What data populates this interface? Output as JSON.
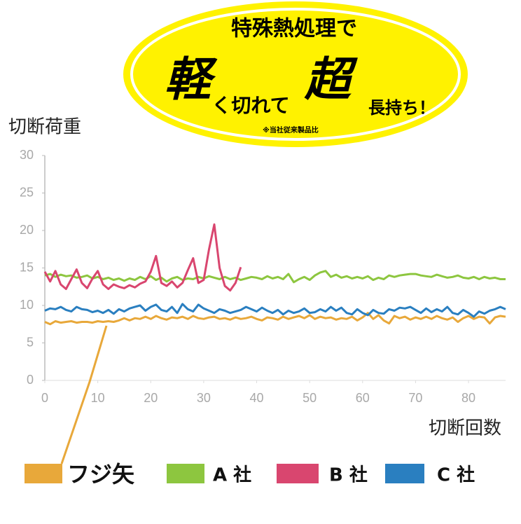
{
  "chart_data": {
    "type": "line",
    "annotations": [
      "特殊熱処理で",
      "軽",
      "く切れて",
      "超",
      "長持ち！",
      "※当社従来製品比"
    ],
    "ylabel": "切断荷重",
    "xlabel": "切断回数",
    "xlim": [
      0,
      87
    ],
    "xticks": [
      0,
      10,
      20,
      30,
      40,
      50,
      60,
      70,
      80
    ],
    "ylim": [
      0,
      30
    ],
    "yticks": [
      0,
      5,
      10,
      15,
      20,
      25,
      30
    ],
    "legend": "bottom",
    "x": [
      0,
      1,
      2,
      3,
      4,
      5,
      6,
      7,
      8,
      9,
      10,
      11,
      12,
      13,
      14,
      15,
      16,
      17,
      18,
      19,
      20,
      21,
      22,
      23,
      24,
      25,
      26,
      27,
      28,
      29,
      30,
      31,
      32,
      33,
      34,
      35,
      36,
      37,
      38,
      39,
      40,
      41,
      42,
      43,
      44,
      45,
      46,
      47,
      48,
      49,
      50,
      51,
      52,
      53,
      54,
      55,
      56,
      57,
      58,
      59,
      60,
      61,
      62,
      63,
      64,
      65,
      66,
      67,
      68,
      69,
      70,
      71,
      72,
      73,
      74,
      75,
      76,
      77,
      78,
      79,
      80,
      81,
      82,
      83,
      84,
      85,
      86,
      87
    ],
    "series": [
      {
        "name": "フジ矢",
        "color": "#e8a83a",
        "values": [
          7.8,
          7.5,
          7.9,
          7.7,
          7.8,
          7.9,
          7.7,
          7.8,
          7.8,
          7.7,
          7.9,
          7.8,
          7.9,
          7.8,
          8.0,
          8.3,
          8.0,
          8.3,
          8.2,
          8.5,
          8.2,
          8.6,
          8.3,
          8.1,
          8.4,
          8.3,
          8.5,
          8.2,
          8.6,
          8.3,
          8.2,
          8.4,
          8.5,
          8.2,
          8.3,
          8.1,
          8.4,
          8.2,
          8.3,
          8.5,
          8.2,
          8.0,
          8.4,
          8.3,
          8.1,
          8.5,
          8.2,
          8.4,
          8.6,
          8.3,
          8.7,
          8.2,
          8.5,
          8.3,
          8.4,
          8.1,
          8.3,
          8.2,
          8.5,
          8.0,
          8.4,
          9.0,
          8.2,
          8.7,
          8.0,
          7.6,
          8.6,
          8.3,
          8.5,
          8.1,
          8.4,
          8.2,
          8.5,
          8.2,
          8.6,
          8.3,
          8.1,
          8.4,
          7.8,
          8.3,
          8.6,
          8.2,
          8.5,
          8.4,
          7.6,
          8.4,
          8.6,
          8.5
        ]
      },
      {
        "name": "A 社",
        "color": "#8dc63f",
        "values": [
          14.0,
          14.2,
          13.8,
          14.1,
          13.9,
          14.0,
          13.7,
          13.8,
          14.0,
          13.6,
          13.8,
          13.5,
          13.7,
          13.4,
          13.6,
          13.3,
          13.6,
          13.4,
          13.8,
          13.5,
          13.9,
          13.4,
          13.7,
          13.2,
          13.6,
          13.8,
          13.4,
          13.6,
          13.5,
          13.8,
          13.6,
          13.9,
          13.7,
          13.5,
          13.8,
          13.5,
          13.7,
          13.4,
          13.6,
          13.8,
          13.7,
          13.5,
          13.9,
          13.6,
          13.8,
          13.5,
          14.2,
          13.1,
          13.5,
          13.8,
          13.4,
          14.0,
          14.4,
          14.6,
          13.8,
          14.1,
          13.7,
          13.9,
          13.6,
          13.8,
          13.6,
          13.9,
          13.4,
          13.7,
          13.5,
          14.0,
          13.8,
          14.0,
          14.1,
          14.2,
          14.2,
          14.0,
          13.9,
          13.8,
          14.1,
          13.9,
          13.7,
          13.8,
          14.0,
          13.7,
          13.6,
          13.8,
          13.5,
          13.8,
          13.6,
          13.7,
          13.5,
          13.5
        ]
      },
      {
        "name": "B 社",
        "color": "#d9466f",
        "values": [
          14.5,
          13.2,
          14.6,
          12.8,
          12.2,
          13.5,
          14.8,
          13.0,
          12.3,
          13.6,
          14.6,
          12.8,
          12.2,
          12.8,
          12.5,
          12.3,
          12.7,
          12.4,
          12.9,
          13.2,
          14.5,
          16.6,
          13.0,
          12.6,
          13.2,
          12.4,
          13.0,
          14.7,
          16.3,
          13.0,
          13.4,
          17.5,
          20.8,
          15.0,
          12.6,
          12.0,
          13.0,
          15.1,
          null,
          null,
          null,
          null,
          null,
          null,
          null,
          null,
          null,
          null,
          null,
          null,
          null,
          null,
          null,
          null,
          null,
          null,
          null,
          null,
          null,
          null,
          null,
          null,
          null,
          null,
          null,
          null,
          null,
          null,
          null,
          null,
          null,
          null,
          null,
          null,
          null,
          null,
          null,
          null,
          null,
          null,
          null,
          null,
          null,
          null,
          null,
          null,
          null,
          null
        ]
      },
      {
        "name": "C 社",
        "color": "#2a7fc0",
        "values": [
          9.3,
          9.6,
          9.5,
          9.8,
          9.4,
          9.2,
          9.8,
          9.5,
          9.4,
          9.1,
          9.3,
          9.0,
          9.4,
          8.9,
          9.5,
          9.2,
          9.6,
          9.8,
          10.0,
          9.3,
          9.8,
          10.1,
          9.4,
          9.2,
          9.8,
          9.0,
          10.2,
          9.5,
          9.2,
          10.1,
          9.6,
          9.3,
          9.0,
          9.5,
          9.3,
          9.0,
          9.2,
          9.4,
          9.8,
          9.5,
          9.2,
          9.7,
          9.3,
          9.0,
          9.4,
          8.8,
          9.3,
          9.0,
          9.2,
          9.6,
          9.0,
          9.1,
          9.5,
          9.2,
          9.8,
          9.3,
          9.7,
          9.0,
          8.8,
          9.5,
          9.0,
          8.7,
          9.4,
          9.0,
          8.9,
          9.5,
          9.3,
          9.7,
          9.6,
          9.8,
          9.4,
          9.0,
          9.6,
          9.1,
          9.5,
          9.2,
          9.8,
          9.0,
          8.8,
          9.4,
          9.0,
          8.5,
          9.2,
          8.9,
          9.3,
          9.5,
          9.8,
          9.5
        ]
      }
    ]
  }
}
